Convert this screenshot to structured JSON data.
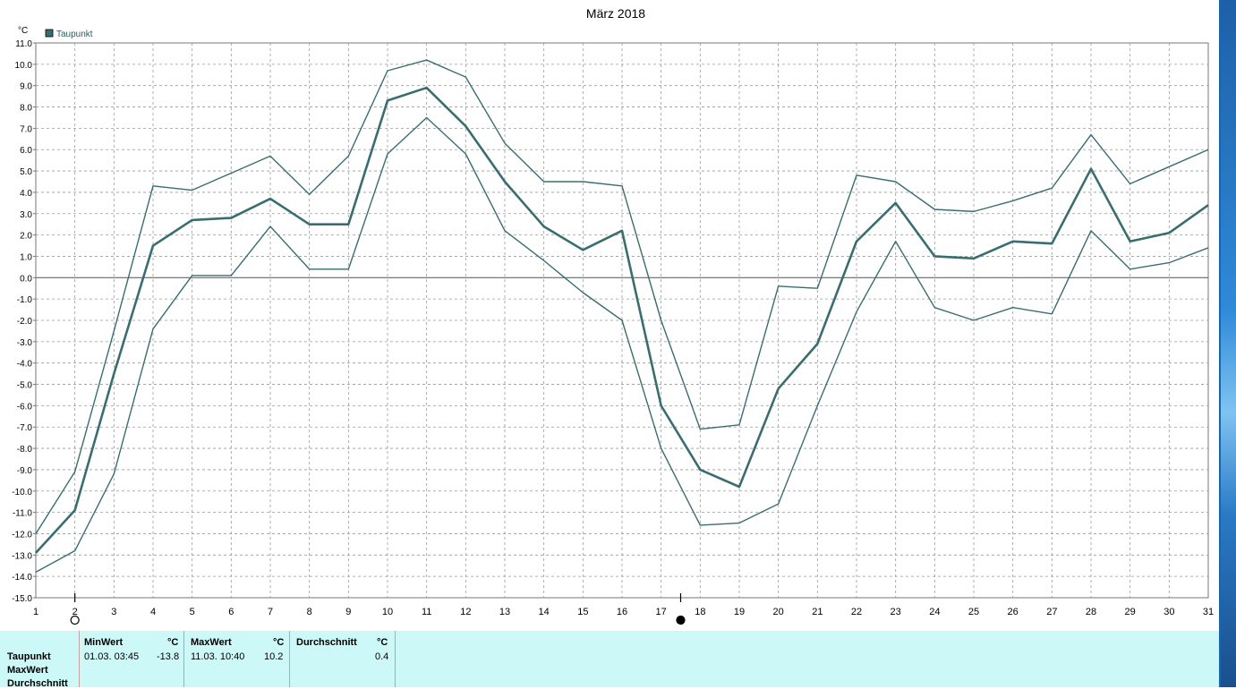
{
  "chart_data": {
    "type": "line",
    "title": "März 2018",
    "unit_label": "°C",
    "legend": {
      "label": "Taupunkt",
      "placement": "top-left",
      "color": "#3a6d70"
    },
    "x": [
      1,
      2,
      3,
      4,
      5,
      6,
      7,
      8,
      9,
      10,
      11,
      12,
      13,
      14,
      15,
      16,
      17,
      18,
      19,
      20,
      21,
      22,
      23,
      24,
      25,
      26,
      27,
      28,
      29,
      30,
      31
    ],
    "xlim": [
      1,
      31
    ],
    "ylim": [
      -15,
      11
    ],
    "yticks": [
      "11.0",
      "10.0",
      "9.0",
      "8.0",
      "7.0",
      "6.0",
      "5.0",
      "4.0",
      "3.0",
      "2.0",
      "1.0",
      "0.0",
      "-1.0",
      "-2.0",
      "-3.0",
      "-4.0",
      "-5.0",
      "-6.0",
      "-7.0",
      "-8.0",
      "-9.0",
      "-10.0",
      "-11.0",
      "-12.0",
      "-13.0",
      "-14.0",
      "-15.0"
    ],
    "xticks": [
      "1",
      "2",
      "3",
      "4",
      "5",
      "6",
      "7",
      "8",
      "9",
      "10",
      "11",
      "12",
      "13",
      "14",
      "15",
      "16",
      "17",
      "18",
      "19",
      "20",
      "21",
      "22",
      "23",
      "24",
      "25",
      "26",
      "27",
      "28",
      "29",
      "30",
      "31"
    ],
    "grid": true,
    "zero_line": true,
    "series": [
      {
        "role": "max",
        "values": [
          -12.0,
          -9.1,
          -2.5,
          4.3,
          4.1,
          4.9,
          5.7,
          3.9,
          5.7,
          9.7,
          10.2,
          9.4,
          6.3,
          4.5,
          4.5,
          4.3,
          -2.0,
          -7.1,
          -6.9,
          -0.4,
          -0.5,
          4.8,
          4.5,
          3.2,
          3.1,
          3.6,
          4.2,
          6.7,
          4.4,
          5.2,
          6.0
        ]
      },
      {
        "role": "mean",
        "values": [
          -12.9,
          -10.9,
          -4.5,
          1.5,
          2.7,
          2.8,
          3.7,
          2.5,
          2.5,
          8.3,
          8.9,
          7.1,
          4.5,
          2.4,
          1.3,
          2.2,
          -6.0,
          -9.0,
          -9.8,
          -5.2,
          -3.1,
          1.7,
          3.5,
          1.0,
          0.9,
          1.7,
          1.6,
          5.1,
          1.7,
          2.1,
          3.4
        ]
      },
      {
        "role": "min",
        "values": [
          -13.8,
          -12.8,
          -9.2,
          -2.4,
          0.1,
          0.1,
          2.4,
          0.4,
          0.4,
          5.8,
          7.5,
          5.8,
          2.2,
          0.8,
          -0.7,
          -2.0,
          -8.0,
          -11.6,
          -11.5,
          -10.6,
          -6.0,
          -1.6,
          1.7,
          -1.4,
          -2.0,
          -1.4,
          -1.7,
          2.2,
          0.4,
          0.7,
          1.4
        ]
      }
    ],
    "moon_phase_markers": [
      {
        "day": 2,
        "phase": "full-moon"
      },
      {
        "day": 17.5,
        "phase": "new-moon"
      }
    ]
  },
  "stats": {
    "row_labels": [
      "Taupunkt",
      "MaxWert",
      "Durchschnitt"
    ],
    "min": {
      "header": "MinWert",
      "unit": "°C",
      "when": "01.03.  03:45",
      "value": "-13.8"
    },
    "max": {
      "header": "MaxWert",
      "unit": "°C",
      "when": "11.03.  10:40",
      "value": "10.2"
    },
    "avg": {
      "header": "Durchschnitt",
      "unit": "°C",
      "value": "0.4"
    }
  }
}
